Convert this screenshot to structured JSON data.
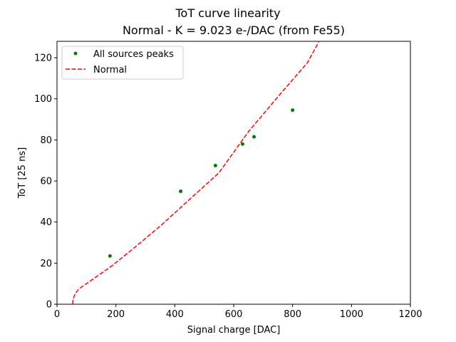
{
  "chart_data": {
    "type": "scatter",
    "title": "ToT curve linearity",
    "subtitle": "Normal - K = 9.023 e-/DAC (from Fe55)",
    "xlabel": "Signal charge [DAC]",
    "ylabel": "ToT [25 ns]",
    "xlim": [
      0,
      1200
    ],
    "ylim": [
      0,
      128
    ],
    "xticks": [
      "0",
      "200",
      "400",
      "600",
      "800",
      "1000",
      "1200"
    ],
    "yticks": [
      "0",
      "20",
      "40",
      "60",
      "80",
      "100",
      "120"
    ],
    "grid": false,
    "legend_position": "top-left",
    "series": [
      {
        "name": "All sources peaks",
        "style": "markers",
        "color": "#008000",
        "x": [
          180,
          420,
          538,
          630,
          669,
          800
        ],
        "y": [
          23.5,
          55,
          67.5,
          78,
          81.5,
          94.5
        ]
      },
      {
        "name": "Normal",
        "style": "dashed-line",
        "color": "#ff0000",
        "x": [
          53,
          54,
          56,
          60,
          66,
          75,
          90,
          110,
          140,
          180,
          250,
          350,
          450,
          550,
          650,
          750,
          850,
          890
        ],
        "y": [
          0,
          1.5,
          3,
          4.5,
          6,
          7.5,
          9,
          11,
          14,
          18,
          26,
          38,
          51,
          64,
          84,
          101,
          117.5,
          128
        ]
      }
    ]
  }
}
